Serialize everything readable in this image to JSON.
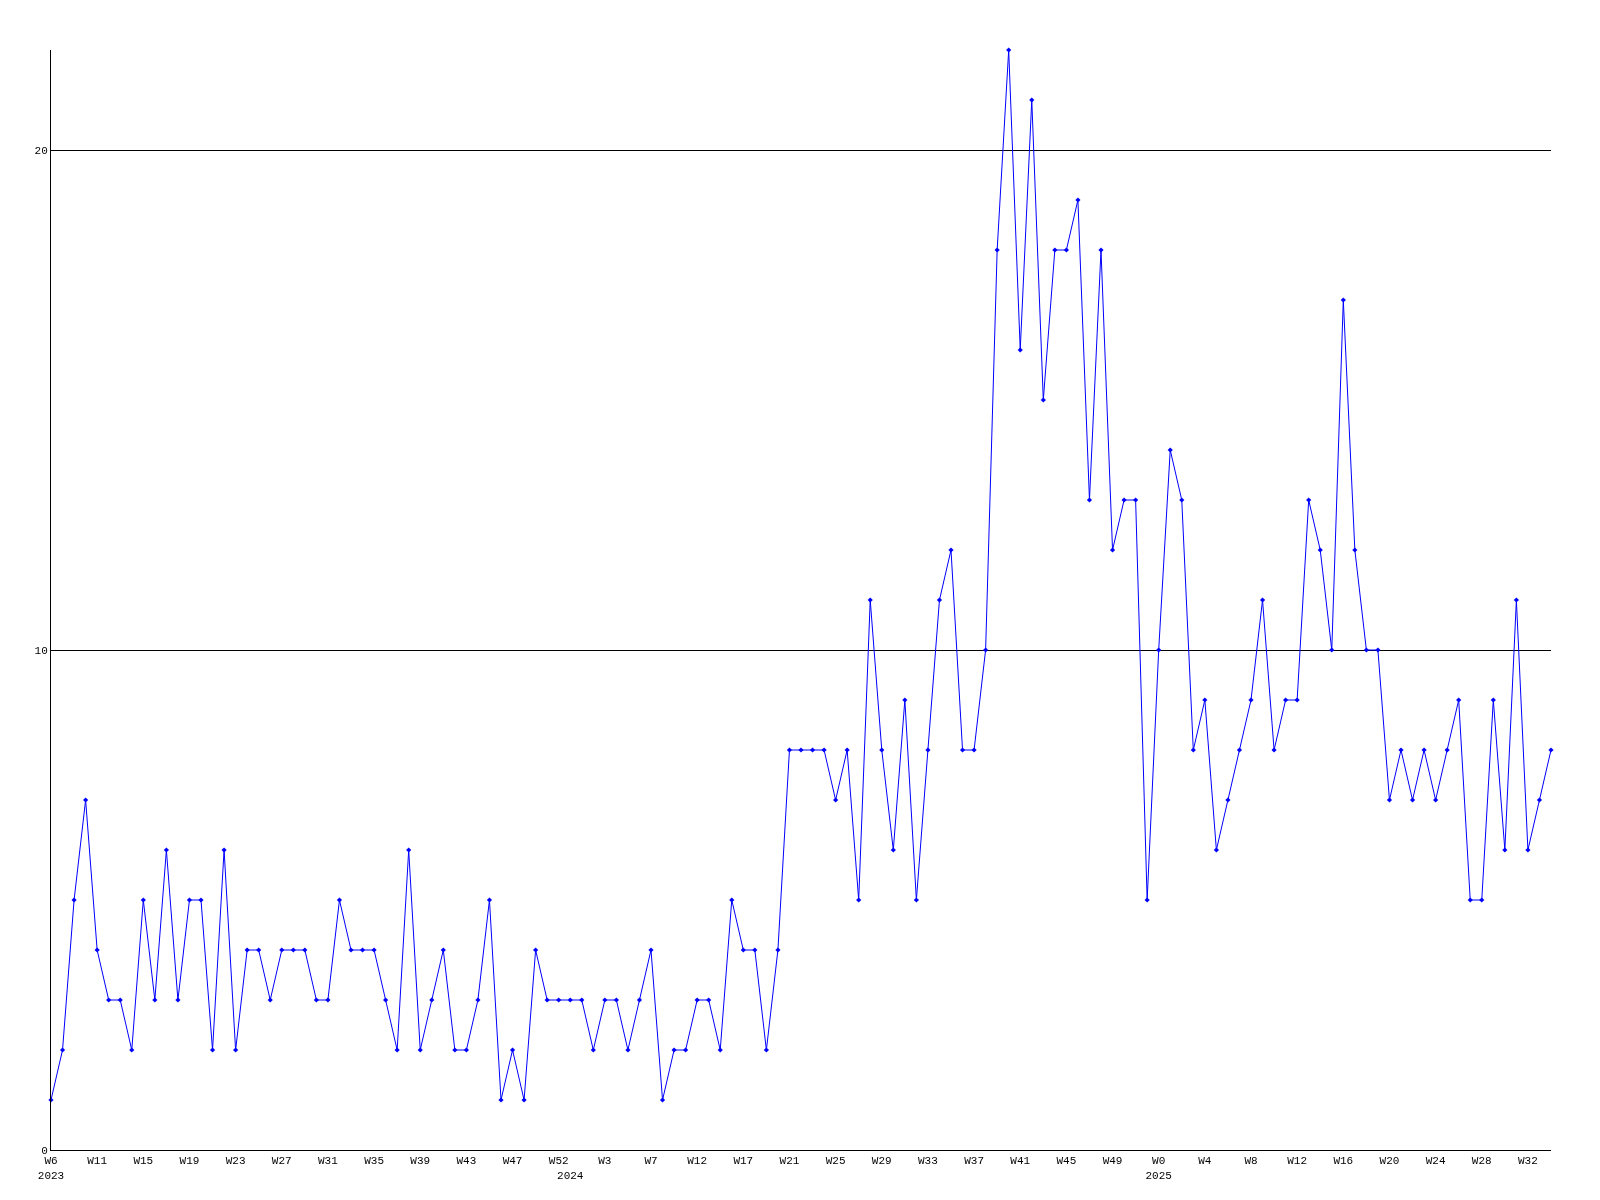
{
  "chart_data": {
    "type": "line",
    "categories": [
      "W6\n2023",
      null,
      null,
      null,
      "W11",
      null,
      null,
      null,
      "W15",
      null,
      null,
      null,
      "W19",
      null,
      null,
      null,
      "W23",
      null,
      null,
      null,
      "W27",
      null,
      null,
      null,
      "W31",
      null,
      null,
      null,
      "W35",
      null,
      null,
      null,
      "W39",
      null,
      null,
      null,
      "W43",
      null,
      null,
      null,
      "W47",
      null,
      null,
      null,
      "W52",
      "\n2024",
      null,
      null,
      "W3",
      null,
      null,
      null,
      "W7",
      null,
      null,
      null,
      "W12",
      null,
      null,
      null,
      "W17",
      null,
      null,
      null,
      "W21",
      null,
      null,
      null,
      "W25",
      null,
      null,
      null,
      "W29",
      null,
      null,
      null,
      "W33",
      null,
      null,
      null,
      "W37",
      null,
      null,
      null,
      "W41",
      null,
      null,
      null,
      "W45",
      null,
      null,
      null,
      "W49",
      null,
      null,
      null,
      "W0\n2025",
      null,
      null,
      null,
      "W4",
      null,
      null,
      null,
      "W8",
      null,
      null,
      null,
      "W12",
      null,
      null,
      null,
      "W16",
      null,
      null,
      null,
      "W20",
      null,
      null,
      null,
      "W24",
      null,
      null,
      null,
      "W28",
      null,
      null,
      null,
      "W32",
      null,
      null
    ],
    "series": [
      {
        "color": "#0000ff",
        "values": [
          1,
          2,
          5,
          7,
          4,
          3,
          3,
          2,
          5,
          3,
          6,
          3,
          5,
          5,
          2,
          6,
          2,
          4,
          4,
          3,
          4,
          4,
          4,
          3,
          3,
          5,
          4,
          4,
          4,
          3,
          2,
          6,
          2,
          3,
          4,
          2,
          2,
          3,
          5,
          1,
          2,
          1,
          4,
          3,
          3,
          3,
          3,
          2,
          3,
          3,
          2,
          3,
          4,
          1,
          2,
          2,
          3,
          3,
          2,
          5,
          4,
          4,
          2,
          4,
          8,
          8,
          8,
          8,
          7,
          8,
          5,
          11,
          8,
          6,
          9,
          5,
          8,
          11,
          12,
          8,
          8,
          10,
          18,
          22,
          16,
          21,
          15,
          18,
          18,
          19,
          13,
          18,
          12,
          13,
          13,
          5,
          10,
          14,
          13,
          8,
          9,
          6,
          7,
          8,
          9,
          11,
          8,
          9,
          9,
          13,
          12,
          10,
          17,
          12,
          10,
          10,
          7,
          8,
          7,
          8,
          7,
          8,
          9,
          5,
          5,
          9,
          6,
          11,
          6,
          7,
          8
        ]
      }
    ],
    "ylim": [
      0,
      22
    ],
    "yticks": [
      0,
      10,
      20
    ],
    "grid": "y",
    "marker": "diamond",
    "line_style": "solid",
    "legend": false
  }
}
